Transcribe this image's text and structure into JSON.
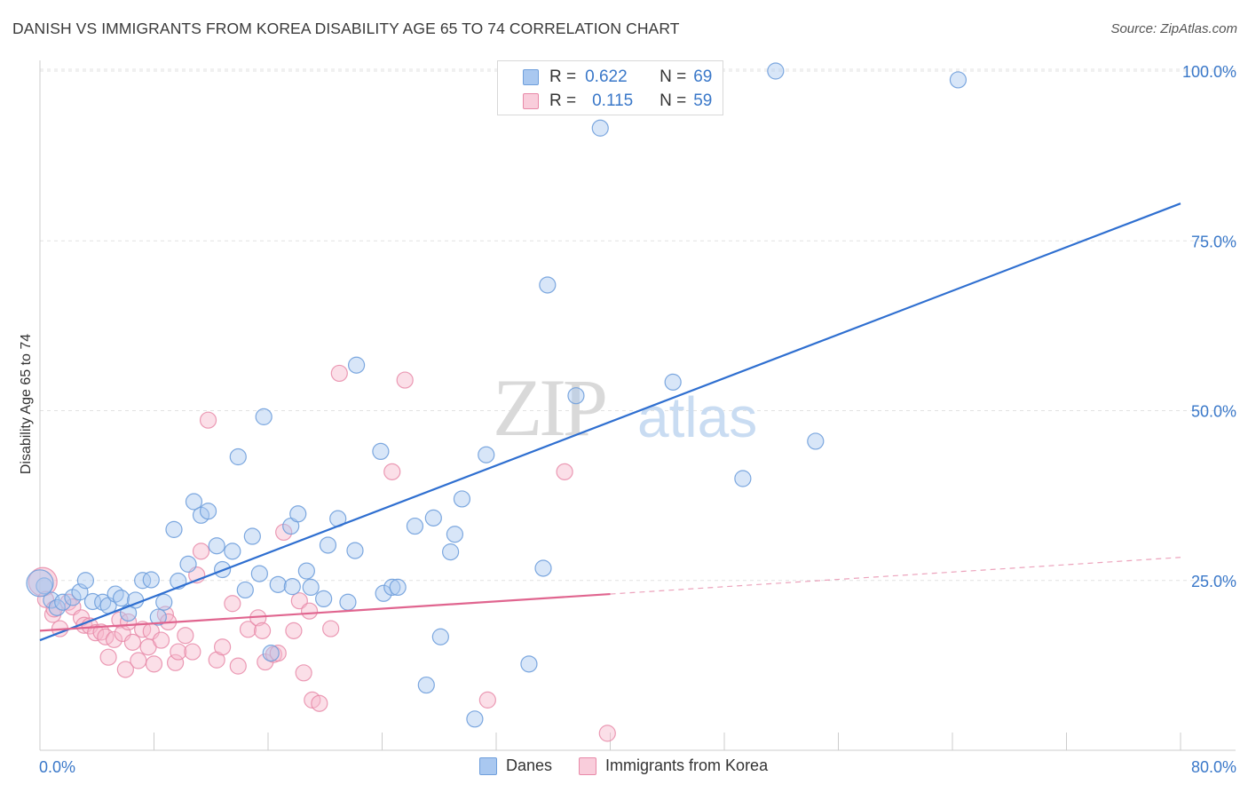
{
  "title": "DANISH VS IMMIGRANTS FROM KOREA DISABILITY AGE 65 TO 74 CORRELATION CHART",
  "source": "Source: ZipAtlas.com",
  "watermark": {
    "zip": "ZIP",
    "atlas": "atlas"
  },
  "legend_top": {
    "r_label": "R =",
    "n_label": "N =",
    "series": [
      {
        "r": "0.622",
        "n": "69"
      },
      {
        "r": "0.115",
        "n": "59"
      }
    ]
  },
  "bottom_legend": {
    "danes": "Danes",
    "korea": "Immigrants from Korea"
  },
  "colors": {
    "blue_fill": "#a9c8f0",
    "blue_stroke": "#6f9fdc",
    "blue_line": "#2f6fd0",
    "pink_fill": "#f6b8cb",
    "pink_stroke": "#e889a8",
    "pink_line": "#e0658f",
    "axis_text": "#3a78c9"
  },
  "chart_data": {
    "type": "scatter",
    "title": "DANISH VS IMMIGRANTS FROM KOREA DISABILITY AGE 65 TO 74 CORRELATION CHART",
    "xlabel": "",
    "ylabel": "Disability Age 65 to 74",
    "xlim": [
      0,
      80
    ],
    "ylim": [
      0,
      102
    ],
    "x_tick_labels": [
      "0.0%",
      "80.0%"
    ],
    "y_ticks": [
      25,
      50,
      75,
      100
    ],
    "y_tick_labels": [
      "25.0%",
      "50.0%",
      "75.0%",
      "100.0%"
    ],
    "grid": true,
    "legend_position": "top-center",
    "series": [
      {
        "name": "Danes",
        "color": "#6f9fdc",
        "trend": {
          "x": [
            0,
            80
          ],
          "y": [
            16.2,
            80.5
          ]
        },
        "points": [
          [
            0.3,
            24.2
          ],
          [
            0.8,
            22.1
          ],
          [
            1.2,
            21.0
          ],
          [
            1.6,
            21.8
          ],
          [
            2.3,
            22.5
          ],
          [
            2.8,
            23.3
          ],
          [
            3.2,
            25.0
          ],
          [
            3.7,
            21.9
          ],
          [
            4.4,
            21.8
          ],
          [
            4.8,
            21.3
          ],
          [
            5.3,
            23.0
          ],
          [
            5.7,
            22.4
          ],
          [
            6.2,
            20.2
          ],
          [
            6.7,
            22.1
          ],
          [
            7.2,
            25.0
          ],
          [
            7.8,
            25.1
          ],
          [
            8.3,
            19.6
          ],
          [
            8.7,
            21.8
          ],
          [
            9.7,
            24.9
          ],
          [
            10.4,
            27.4
          ],
          [
            9.4,
            32.5
          ],
          [
            10.8,
            36.6
          ],
          [
            11.3,
            34.6
          ],
          [
            11.8,
            35.2
          ],
          [
            12.4,
            30.1
          ],
          [
            12.8,
            26.6
          ],
          [
            13.5,
            29.3
          ],
          [
            13.9,
            43.2
          ],
          [
            14.4,
            23.6
          ],
          [
            14.9,
            31.5
          ],
          [
            15.4,
            26.0
          ],
          [
            15.7,
            49.1
          ],
          [
            16.2,
            14.3
          ],
          [
            16.7,
            24.4
          ],
          [
            17.7,
            24.1
          ],
          [
            17.6,
            33.0
          ],
          [
            18.1,
            34.8
          ],
          [
            18.7,
            26.4
          ],
          [
            19.0,
            24.0
          ],
          [
            19.9,
            22.3
          ],
          [
            20.2,
            30.2
          ],
          [
            20.9,
            34.1
          ],
          [
            21.6,
            21.8
          ],
          [
            22.1,
            29.4
          ],
          [
            22.2,
            56.7
          ],
          [
            23.9,
            44.0
          ],
          [
            24.1,
            23.1
          ],
          [
            24.7,
            24.0
          ],
          [
            25.1,
            24.0
          ],
          [
            26.3,
            33.0
          ],
          [
            27.1,
            9.6
          ],
          [
            27.6,
            34.2
          ],
          [
            28.1,
            16.7
          ],
          [
            28.8,
            29.2
          ],
          [
            29.1,
            31.8
          ],
          [
            29.6,
            37.0
          ],
          [
            30.5,
            4.6
          ],
          [
            31.3,
            43.5
          ],
          [
            34.3,
            12.7
          ],
          [
            35.3,
            26.8
          ],
          [
            35.6,
            68.5
          ],
          [
            37.6,
            52.2
          ],
          [
            39.3,
            91.6
          ],
          [
            44.4,
            54.2
          ],
          [
            49.3,
            40.0
          ],
          [
            51.6,
            100.0
          ],
          [
            54.4,
            45.5
          ],
          [
            64.4,
            98.7
          ],
          [
            0.0,
            24.6
          ]
        ]
      },
      {
        "name": "Immigrants from Korea",
        "color": "#e889a8",
        "trend": {
          "x": [
            0,
            40
          ],
          "y": [
            17.6,
            23.0
          ]
        },
        "trend_extension": {
          "x": [
            40,
            80
          ],
          "y": [
            23.0,
            28.4
          ]
        },
        "points": [
          [
            0.2,
            24.8
          ],
          [
            0.4,
            22.2
          ],
          [
            0.9,
            20.0
          ],
          [
            1.4,
            17.9
          ],
          [
            2.0,
            21.8
          ],
          [
            2.3,
            21.1
          ],
          [
            2.9,
            19.5
          ],
          [
            3.1,
            18.4
          ],
          [
            3.5,
            18.3
          ],
          [
            3.9,
            17.3
          ],
          [
            4.3,
            17.4
          ],
          [
            4.6,
            16.7
          ],
          [
            4.8,
            13.7
          ],
          [
            5.2,
            16.3
          ],
          [
            5.6,
            19.2
          ],
          [
            5.8,
            17.2
          ],
          [
            6.2,
            18.9
          ],
          [
            6.0,
            11.9
          ],
          [
            6.5,
            15.9
          ],
          [
            6.9,
            13.2
          ],
          [
            7.2,
            17.8
          ],
          [
            7.6,
            15.2
          ],
          [
            7.8,
            17.5
          ],
          [
            8.0,
            12.7
          ],
          [
            8.5,
            16.2
          ],
          [
            8.8,
            20.0
          ],
          [
            9.0,
            18.9
          ],
          [
            9.5,
            12.9
          ],
          [
            9.7,
            14.5
          ],
          [
            10.2,
            16.9
          ],
          [
            10.7,
            14.5
          ],
          [
            11.0,
            25.8
          ],
          [
            11.3,
            29.3
          ],
          [
            11.8,
            48.6
          ],
          [
            12.4,
            13.3
          ],
          [
            12.8,
            15.2
          ],
          [
            13.5,
            21.6
          ],
          [
            13.9,
            12.4
          ],
          [
            14.6,
            17.8
          ],
          [
            15.3,
            19.5
          ],
          [
            15.6,
            17.6
          ],
          [
            15.8,
            13.0
          ],
          [
            16.4,
            14.1
          ],
          [
            16.7,
            14.3
          ],
          [
            17.1,
            32.1
          ],
          [
            17.8,
            17.6
          ],
          [
            18.2,
            22.0
          ],
          [
            18.5,
            11.4
          ],
          [
            18.9,
            20.5
          ],
          [
            19.1,
            7.4
          ],
          [
            19.6,
            6.9
          ],
          [
            20.4,
            17.9
          ],
          [
            21.0,
            55.5
          ],
          [
            24.7,
            41.0
          ],
          [
            25.6,
            54.5
          ],
          [
            31.4,
            7.4
          ],
          [
            36.8,
            41.0
          ],
          [
            39.8,
            2.5
          ],
          [
            1.0,
            20.8
          ]
        ]
      }
    ]
  }
}
